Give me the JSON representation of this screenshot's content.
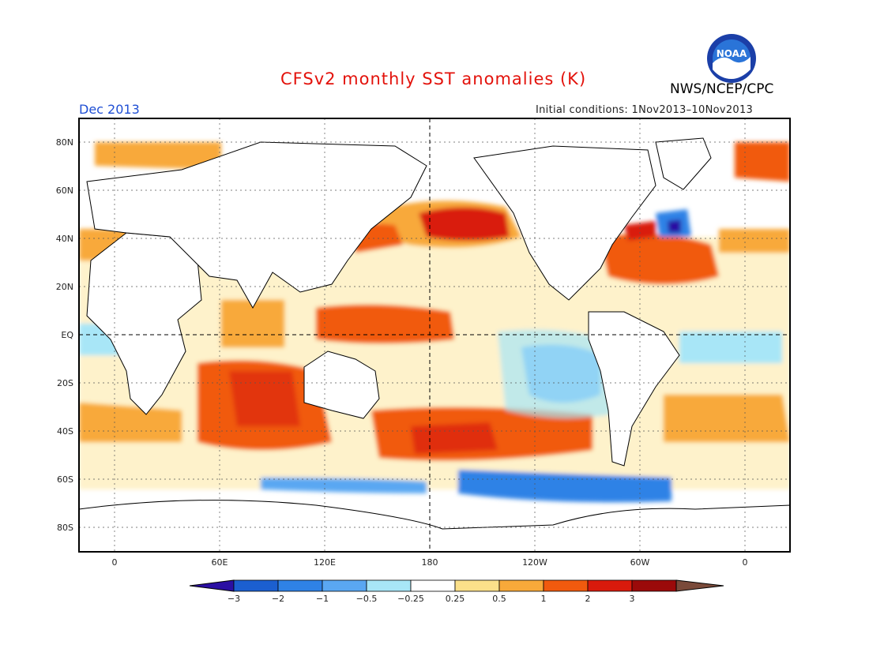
{
  "header": {
    "title": "CFSv2 monthly SST anomalies (K)",
    "agency": "NWS/NCEP/CPC",
    "month": "Dec 2013",
    "initial_conditions": "Initial conditions: 1Nov2013–10Nov2013",
    "logo_text": "NOAA"
  },
  "map": {
    "lat_labels": [
      "80N",
      "60N",
      "40N",
      "20N",
      "EQ",
      "20S",
      "40S",
      "60S",
      "80S"
    ],
    "lon_labels": [
      "0",
      "60E",
      "120E",
      "180",
      "120W",
      "60W",
      "0"
    ]
  },
  "colorbar": {
    "labels": [
      "-3",
      "-2",
      "-1",
      "-0.5",
      "-0.25",
      "0.25",
      "0.5",
      "1",
      "2",
      "3"
    ],
    "colors": [
      "#2b0fa3",
      "#1b5fd0",
      "#2f82e6",
      "#5aa7f2",
      "#a8e6f7",
      "#ffffff",
      "#fbe08a",
      "#f8a93a",
      "#f15a0e",
      "#d91a0c",
      "#9b0a0a",
      "#7a4a3a"
    ]
  },
  "anomalies": {
    "warm_regions": [
      "North Pacific",
      "Western Pacific",
      "South Indian Ocean",
      "South Pacific",
      "North Atlantic Gulf Stream",
      "Mediterranean"
    ],
    "cool_regions": [
      "Southeast Pacific",
      "Southern Ocean",
      "Central North Atlantic"
    ]
  }
}
